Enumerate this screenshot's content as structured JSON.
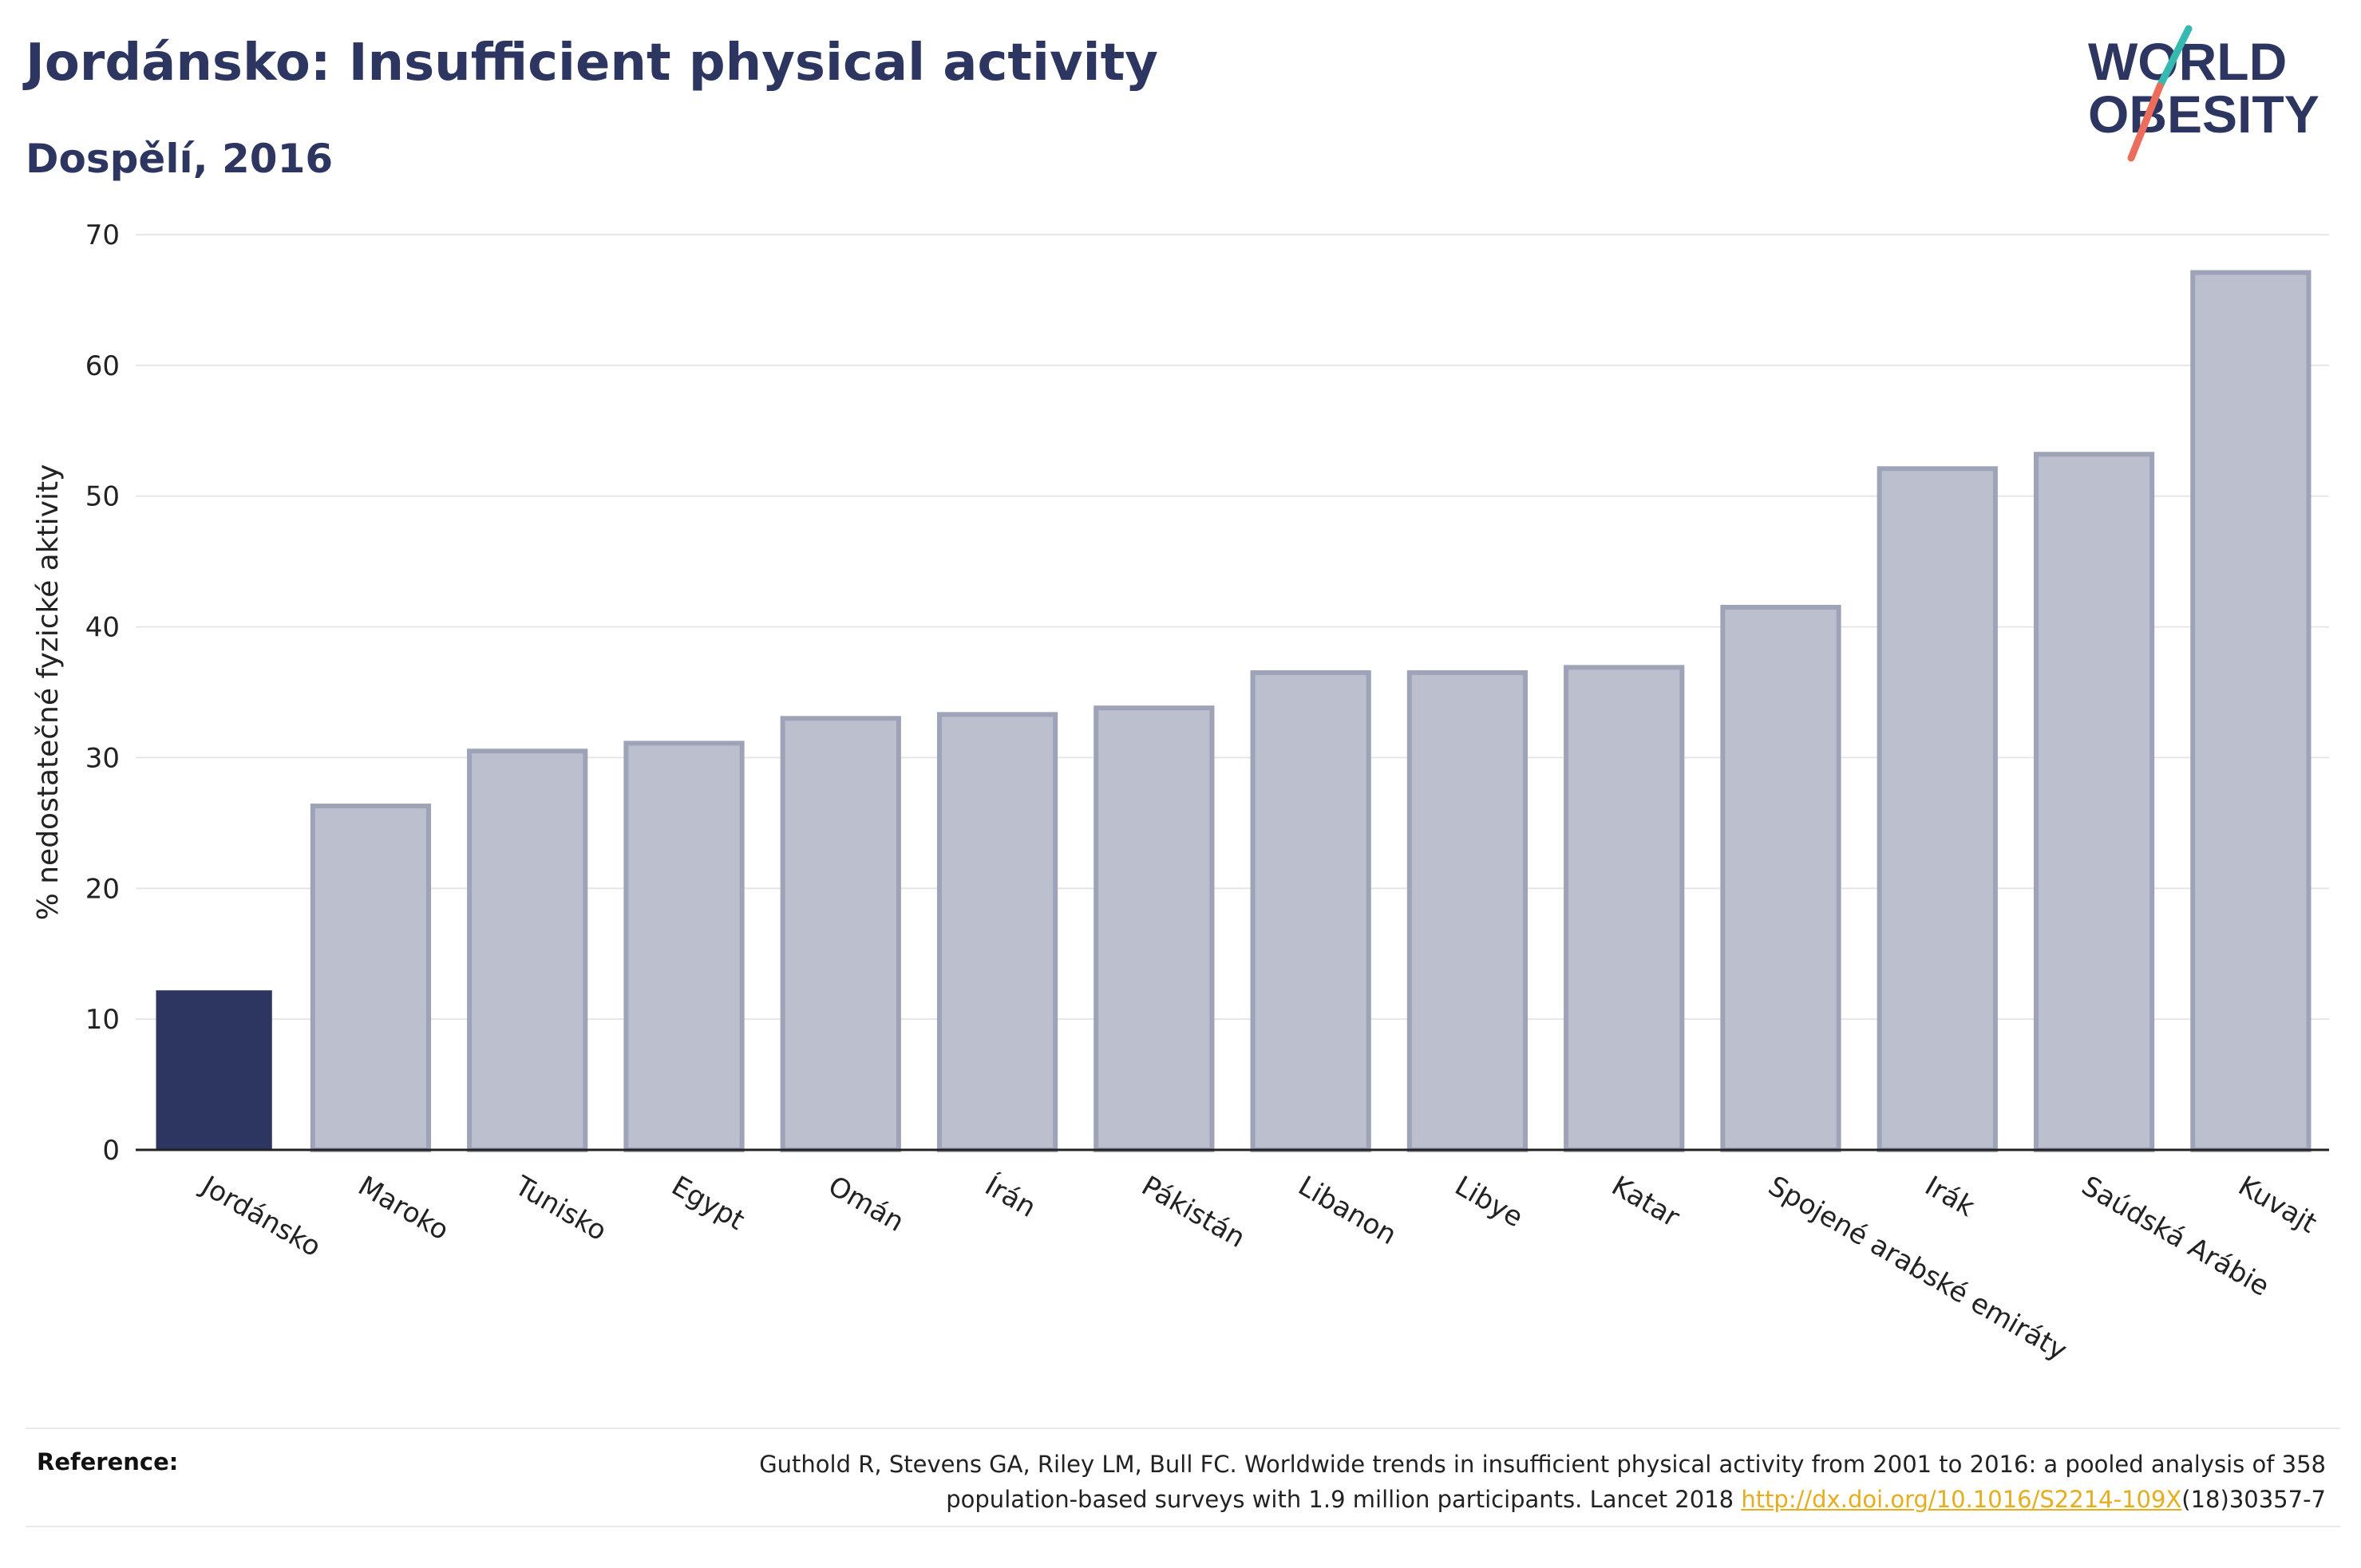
{
  "header": {
    "title": "Jordánsko: Insufficient physical activity",
    "subtitle": "Dospělí, 2016"
  },
  "logo": {
    "line1": "WORLD",
    "line2": "OBESITY"
  },
  "colors": {
    "highlight_bar": "#2d3561",
    "other_bar_fill": "#bcc0ce",
    "other_bar_stroke": "#9ea3b8",
    "grid": "#e6e6ea",
    "axis": "#222222",
    "logo_teal": "#35b9b0",
    "logo_coral": "#ec6d5c",
    "link": "#e6ad1f"
  },
  "chart_data": {
    "type": "bar",
    "title": "Jordánsko: Insufficient physical activity",
    "subtitle": "Dospělí, 2016",
    "xlabel": "",
    "ylabel": "% nedostatečné fyzické aktivity",
    "ylim": [
      0,
      70
    ],
    "yticks": [
      0,
      10,
      20,
      30,
      40,
      50,
      60,
      70
    ],
    "grid": true,
    "highlight_category": "Jordánsko",
    "categories": [
      "Jordánsko",
      "Maroko",
      "Tunisko",
      "Egypt",
      "Omán",
      "Írán",
      "Pákistán",
      "Libanon",
      "Libye",
      "Katar",
      "Spojené arabské emiráty",
      "Irák",
      "Saúdská Arábie",
      "Kuvajt"
    ],
    "values": [
      12.2,
      26.3,
      30.5,
      31.1,
      33.0,
      33.3,
      33.8,
      36.5,
      36.5,
      36.9,
      41.5,
      52.1,
      53.2,
      67.1
    ]
  },
  "footer": {
    "reference_label": "Reference:",
    "reference_text_1": "Guthold R, Stevens GA, Riley LM, Bull FC. Worldwide trends in insufficient physical activity from 2001 to 2016: a pooled analysis of 358",
    "reference_text_2": "population-based surveys with 1.9 million participants. Lancet 2018 ",
    "reference_link": "http://dx.doi.org/10.1016/S2214-109X",
    "reference_text_3": "(18)30357-7"
  }
}
